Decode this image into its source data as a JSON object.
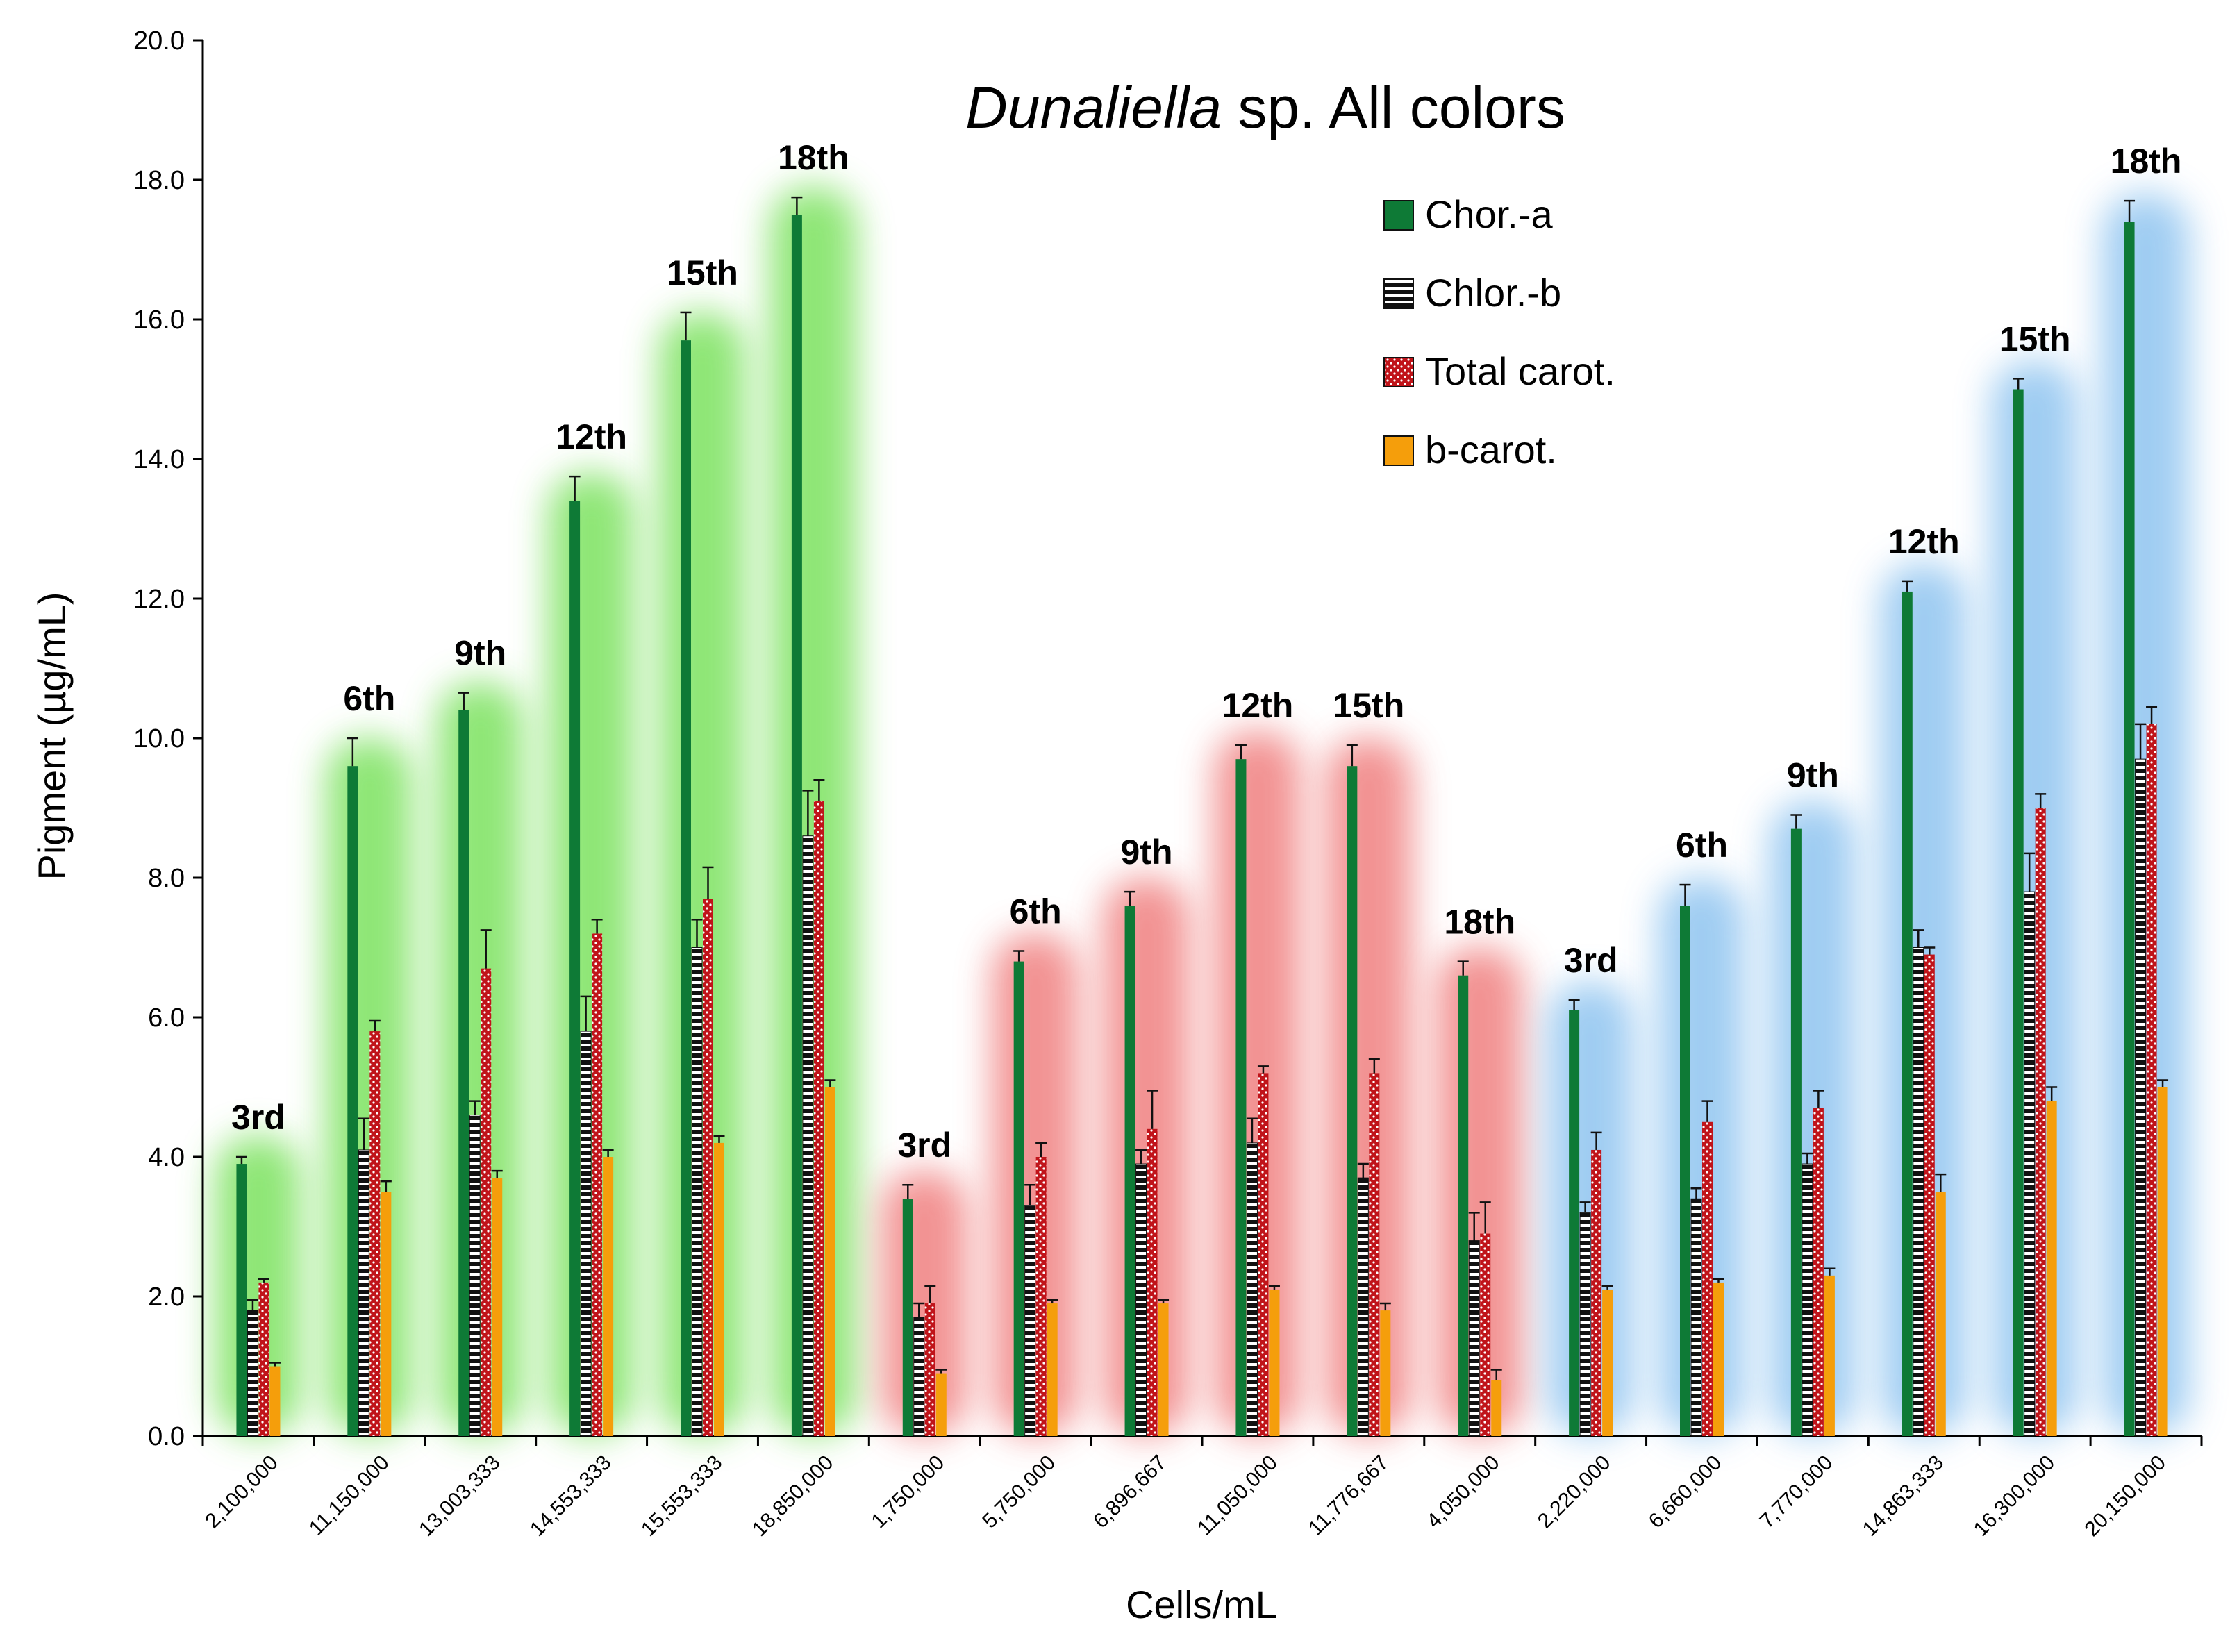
{
  "chart_data": {
    "type": "bar",
    "title_italic": "Dunaliella",
    "title_rest": " sp. All colors",
    "xlabel": "Cells/mL",
    "ylabel": "Pigment (µg/mL)",
    "ylim": [
      0,
      20
    ],
    "yticks": [
      "0.0",
      "2.0",
      "4.0",
      "6.0",
      "8.0",
      "10.0",
      "12.0",
      "14.0",
      "16.0",
      "18.0",
      "20.0"
    ],
    "legend_position": "top-right",
    "categories": [
      "2,100,000",
      "11,150,000",
      "13,003,333",
      "14,553,333",
      "15,553,333",
      "18,850,000",
      "1,750,000",
      "5,750,000",
      "6,896,667",
      "11,050,000",
      "11,776,667",
      "4,050,000",
      "2,220,000",
      "6,660,000",
      "7,770,000",
      "14,863,333",
      "16,300,000",
      "20,150,000"
    ],
    "day_labels": [
      "3rd",
      "6th",
      "9th",
      "12th",
      "15th",
      "18th",
      "3rd",
      "6th",
      "9th",
      "12th",
      "15th",
      "18th",
      "3rd",
      "6th",
      "9th",
      "12th",
      "15th",
      "18th"
    ],
    "groups": [
      {
        "color": "#7ce25e",
        "range": [
          0,
          5
        ]
      },
      {
        "color": "#f08080",
        "range": [
          6,
          11
        ]
      },
      {
        "color": "#8fc4f0",
        "range": [
          12,
          17
        ]
      }
    ],
    "series": [
      {
        "name": "Chor.-a",
        "color": "#0e7a36",
        "pattern": "solid",
        "values": [
          3.9,
          9.6,
          10.4,
          13.4,
          15.7,
          17.5,
          3.4,
          6.8,
          7.6,
          9.7,
          9.6,
          6.6,
          6.1,
          7.6,
          8.7,
          12.1,
          15.0,
          17.4
        ],
        "errors": [
          0.1,
          0.4,
          0.25,
          0.35,
          0.4,
          0.25,
          0.2,
          0.15,
          0.2,
          0.2,
          0.3,
          0.2,
          0.15,
          0.3,
          0.2,
          0.15,
          0.15,
          0.3
        ]
      },
      {
        "name": "Chlor.-b",
        "color": "#111111",
        "pattern": "stripes",
        "values": [
          1.8,
          4.1,
          4.6,
          5.8,
          7.0,
          8.6,
          1.7,
          3.3,
          3.9,
          4.2,
          3.7,
          2.8,
          3.2,
          3.4,
          3.9,
          7.0,
          7.8,
          9.7
        ],
        "errors": [
          0.15,
          0.45,
          0.2,
          0.5,
          0.4,
          0.65,
          0.2,
          0.3,
          0.2,
          0.35,
          0.2,
          0.4,
          0.15,
          0.15,
          0.15,
          0.25,
          0.55,
          0.5
        ]
      },
      {
        "name": "Total carot.",
        "color": "#c0141a",
        "pattern": "dots",
        "values": [
          2.2,
          5.8,
          6.7,
          7.2,
          7.7,
          9.1,
          1.9,
          4.0,
          4.4,
          5.2,
          5.2,
          2.9,
          4.1,
          4.5,
          4.7,
          6.9,
          9.0,
          10.2
        ],
        "errors": [
          0.05,
          0.15,
          0.55,
          0.2,
          0.45,
          0.3,
          0.25,
          0.2,
          0.55,
          0.1,
          0.2,
          0.45,
          0.25,
          0.3,
          0.25,
          0.1,
          0.2,
          0.25
        ]
      },
      {
        "name": "b-carot.",
        "color": "#f59e0b",
        "pattern": "solid",
        "values": [
          1.0,
          3.5,
          3.7,
          4.0,
          4.2,
          5.0,
          0.9,
          1.9,
          1.9,
          2.1,
          1.8,
          0.8,
          2.1,
          2.2,
          2.3,
          3.5,
          4.8,
          5.0
        ],
        "errors": [
          0.05,
          0.15,
          0.1,
          0.1,
          0.1,
          0.1,
          0.05,
          0.05,
          0.05,
          0.05,
          0.1,
          0.15,
          0.05,
          0.05,
          0.1,
          0.25,
          0.2,
          0.1
        ]
      }
    ]
  }
}
